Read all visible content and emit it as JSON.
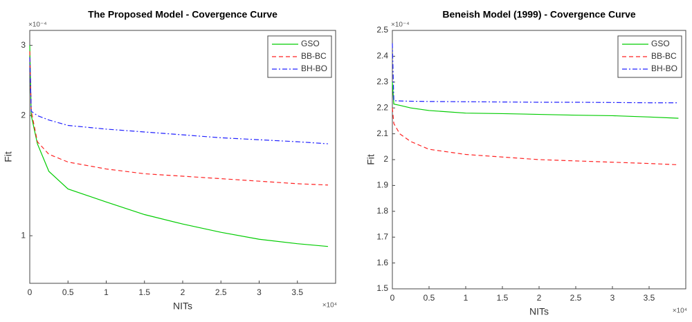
{
  "chart_data": [
    {
      "type": "line",
      "title": "The Proposed Model - Covergence Curve",
      "x_label": "NITs",
      "y_label": "Fit",
      "x_multiplier": "×10⁴",
      "y_multiplier": "×10⁻⁴",
      "y_scale": "log",
      "x": [
        0,
        0.02,
        0.1,
        0.25,
        0.5,
        1,
        1.5,
        2,
        2.5,
        3,
        3.5,
        3.9
      ],
      "xlim": [
        0,
        4
      ],
      "xticks": [
        0,
        0.5,
        1,
        1.5,
        2,
        2.5,
        3,
        3.5
      ],
      "ylim": [
        0.76,
        3.27
      ],
      "yticks": [
        1,
        2,
        3
      ],
      "legend": "top-right",
      "series": [
        {
          "name": "GSO",
          "color": "#00cc00",
          "line_style": "solid",
          "values": [
            3.0,
            2.0,
            1.7,
            1.45,
            1.31,
            1.215,
            1.13,
            1.07,
            1.02,
            0.98,
            0.955,
            0.94
          ]
        },
        {
          "name": "BB-BC",
          "color": "#ff2020",
          "line_style": "dashed",
          "values": [
            2.9,
            2.05,
            1.72,
            1.6,
            1.53,
            1.47,
            1.43,
            1.41,
            1.39,
            1.37,
            1.35,
            1.34
          ]
        },
        {
          "name": "BH-BO",
          "color": "#2020ff",
          "line_style": "dashdot",
          "values": [
            2.8,
            2.05,
            2.0,
            1.95,
            1.89,
            1.85,
            1.82,
            1.79,
            1.76,
            1.74,
            1.72,
            1.7
          ]
        }
      ]
    },
    {
      "type": "line",
      "title": "Beneish Model (1999) - Covergence Curve",
      "x_label": "NITs",
      "y_label": "Fit",
      "x_multiplier": "×10⁴",
      "y_multiplier": "×10⁻⁴",
      "y_scale": "linear",
      "x": [
        0,
        0.02,
        0.1,
        0.25,
        0.5,
        1,
        1.5,
        2,
        2.5,
        3,
        3.5,
        3.9
      ],
      "xlim": [
        0,
        4
      ],
      "xticks": [
        0,
        0.5,
        1,
        1.5,
        2,
        2.5,
        3,
        3.5
      ],
      "ylim": [
        1.5,
        2.5
      ],
      "yticks": [
        1.5,
        1.6,
        1.7,
        1.8,
        1.9,
        2,
        2.1,
        2.2,
        2.3,
        2.4,
        2.5
      ],
      "legend": "top-right",
      "series": [
        {
          "name": "GSO",
          "color": "#00cc00",
          "line_style": "solid",
          "values": [
            2.3,
            2.215,
            2.21,
            2.2,
            2.19,
            2.18,
            2.178,
            2.175,
            2.172,
            2.17,
            2.165,
            2.16
          ]
        },
        {
          "name": "BB-BC",
          "color": "#ff2020",
          "line_style": "dashed",
          "values": [
            2.2,
            2.14,
            2.1,
            2.07,
            2.04,
            2.02,
            2.01,
            2.0,
            1.995,
            1.99,
            1.985,
            1.98
          ]
        },
        {
          "name": "BH-BO",
          "color": "#2020ff",
          "line_style": "dashdot",
          "values": [
            2.45,
            2.228,
            2.227,
            2.226,
            2.225,
            2.224,
            2.223,
            2.222,
            2.222,
            2.221,
            2.22,
            2.22
          ]
        }
      ]
    }
  ]
}
